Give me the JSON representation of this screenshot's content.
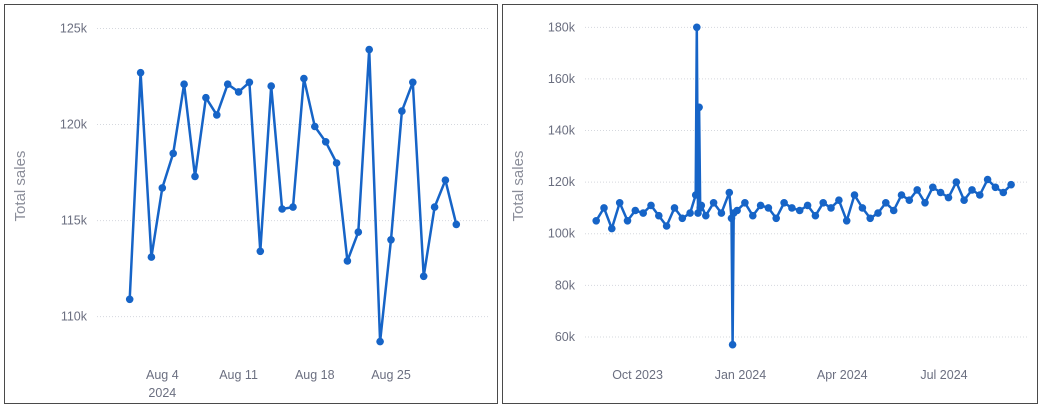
{
  "colors": {
    "series": "#1664c7",
    "grid": "#d5d8de",
    "text": "#6b6f80"
  },
  "chart_data": [
    {
      "type": "line",
      "ylabel": "Total sales",
      "xlabel": "",
      "x_tick_labels": [
        {
          "date": "2024-08-04",
          "label": "Aug 4",
          "sublabel": "2024"
        },
        {
          "date": "2024-08-11",
          "label": "Aug 11"
        },
        {
          "date": "2024-08-18",
          "label": "Aug 18"
        },
        {
          "date": "2024-08-25",
          "label": "Aug 25"
        }
      ],
      "y_ticks": [
        {
          "value": 110000,
          "label": "110k"
        },
        {
          "value": 115000,
          "label": "115k"
        },
        {
          "value": 120000,
          "label": "120k"
        },
        {
          "value": 125000,
          "label": "125k"
        }
      ],
      "xlim": [
        "2024-07-29",
        "2024-09-03"
      ],
      "ylim": [
        108000,
        125600
      ],
      "grid": true,
      "legend": "none",
      "series": [
        {
          "x": [
            "2024-08-01",
            "2024-08-02",
            "2024-08-03",
            "2024-08-04",
            "2024-08-05",
            "2024-08-06",
            "2024-08-07",
            "2024-08-08",
            "2024-08-09",
            "2024-08-10",
            "2024-08-11",
            "2024-08-12",
            "2024-08-13",
            "2024-08-14",
            "2024-08-15",
            "2024-08-16",
            "2024-08-17",
            "2024-08-18",
            "2024-08-19",
            "2024-08-20",
            "2024-08-21",
            "2024-08-22",
            "2024-08-23",
            "2024-08-24",
            "2024-08-25",
            "2024-08-26",
            "2024-08-27",
            "2024-08-28",
            "2024-08-29",
            "2024-08-30",
            "2024-08-31"
          ],
          "y": [
            110900,
            122700,
            113100,
            116700,
            118500,
            122100,
            117300,
            121400,
            120500,
            122100,
            121700,
            122200,
            113400,
            122000,
            115600,
            115700,
            122400,
            119900,
            119100,
            118000,
            112900,
            114400,
            123900,
            108700,
            114000,
            120700,
            122200,
            112100,
            115700,
            117100,
            114800
          ]
        }
      ]
    },
    {
      "type": "line",
      "ylabel": "Total sales",
      "xlabel": "",
      "x_tick_labels": [
        {
          "date": "2023-10-01",
          "label": "Oct 2023"
        },
        {
          "date": "2024-01-01",
          "label": "Jan 2024"
        },
        {
          "date": "2024-04-01",
          "label": "Apr 2024"
        },
        {
          "date": "2024-07-01",
          "label": "Jul 2024"
        }
      ],
      "y_ticks": [
        {
          "value": 60000,
          "label": "60k"
        },
        {
          "value": 80000,
          "label": "80k"
        },
        {
          "value": 100000,
          "label": "100k"
        },
        {
          "value": 120000,
          "label": "120k"
        },
        {
          "value": 140000,
          "label": "140k"
        },
        {
          "value": 160000,
          "label": "160k"
        },
        {
          "value": 180000,
          "label": "180k"
        }
      ],
      "xlim": [
        "2023-08-15",
        "2024-09-15"
      ],
      "ylim": [
        53000,
        184000
      ],
      "grid": true,
      "legend": "none",
      "series": [
        {
          "x": [
            "2023-08-25",
            "2023-09-01",
            "2023-09-08",
            "2023-09-15",
            "2023-09-22",
            "2023-09-29",
            "2023-10-06",
            "2023-10-13",
            "2023-10-20",
            "2023-10-27",
            "2023-11-03",
            "2023-11-10",
            "2023-11-17",
            "2023-11-22",
            "2023-11-23",
            "2023-11-24",
            "2023-11-25",
            "2023-11-26",
            "2023-11-27",
            "2023-12-01",
            "2023-12-08",
            "2023-12-15",
            "2023-12-22",
            "2023-12-24",
            "2023-12-25",
            "2023-12-26",
            "2023-12-29",
            "2024-01-05",
            "2024-01-12",
            "2024-01-19",
            "2024-01-26",
            "2024-02-02",
            "2024-02-09",
            "2024-02-16",
            "2024-02-23",
            "2024-03-01",
            "2024-03-08",
            "2024-03-15",
            "2024-03-22",
            "2024-03-29",
            "2024-04-05",
            "2024-04-12",
            "2024-04-19",
            "2024-04-26",
            "2024-05-03",
            "2024-05-10",
            "2024-05-17",
            "2024-05-24",
            "2024-05-31",
            "2024-06-07",
            "2024-06-14",
            "2024-06-21",
            "2024-06-28",
            "2024-07-05",
            "2024-07-12",
            "2024-07-19",
            "2024-07-26",
            "2024-08-02",
            "2024-08-09",
            "2024-08-16",
            "2024-08-23",
            "2024-08-30"
          ],
          "y": [
            105000,
            110000,
            102000,
            112000,
            105000,
            109000,
            108000,
            111000,
            107000,
            103000,
            110000,
            106000,
            108000,
            115000,
            180000,
            108000,
            149000,
            110000,
            111000,
            107000,
            112000,
            108000,
            116000,
            106000,
            57000,
            108000,
            109000,
            112000,
            107000,
            111000,
            110000,
            106000,
            112000,
            110000,
            109000,
            111000,
            107000,
            112000,
            110000,
            113000,
            105000,
            115000,
            110000,
            106000,
            108000,
            112000,
            109000,
            115000,
            113000,
            117000,
            112000,
            118000,
            116000,
            114000,
            120000,
            113000,
            117000,
            115000,
            121000,
            118000,
            116000,
            119000
          ]
        }
      ]
    }
  ]
}
